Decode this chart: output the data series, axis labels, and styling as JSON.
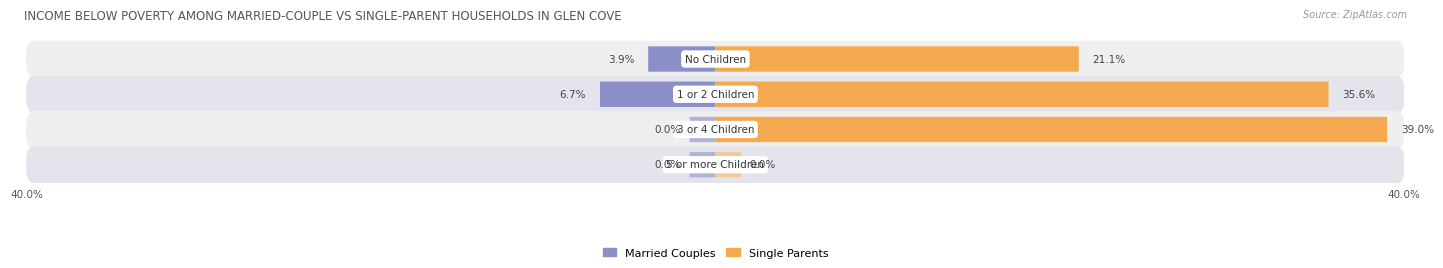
{
  "title": "INCOME BELOW POVERTY AMONG MARRIED-COUPLE VS SINGLE-PARENT HOUSEHOLDS IN GLEN COVE",
  "source": "Source: ZipAtlas.com",
  "categories": [
    "No Children",
    "1 or 2 Children",
    "3 or 4 Children",
    "5 or more Children"
  ],
  "married_values": [
    3.9,
    6.7,
    0.0,
    0.0
  ],
  "single_values": [
    21.1,
    35.6,
    39.0,
    0.0
  ],
  "married_color": "#8b8fc8",
  "single_color": "#f5a94e",
  "single_color_light": "#f5c89a",
  "married_color_light": "#b0b3d8",
  "row_bg_even": "#efefef",
  "row_bg_odd": "#e4e4ec",
  "axis_max": 40.0,
  "title_fontsize": 8.5,
  "source_fontsize": 7,
  "label_fontsize": 7.5,
  "tick_fontsize": 7.5,
  "legend_fontsize": 8,
  "background_color": "#ffffff",
  "title_color": "#555555",
  "value_label_color": "#444444"
}
